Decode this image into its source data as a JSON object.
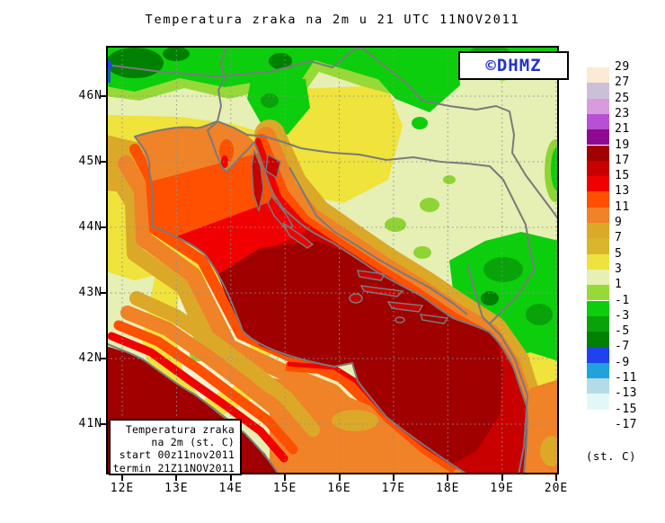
{
  "title": "Temperatura zraka na 2m u 21 UTC 11NOV2011",
  "logo": {
    "text": "©DHMZ",
    "color": "#2233cc"
  },
  "info_box": {
    "lines": [
      "Temperatura zraka",
      "na 2m (st. C)",
      "start 00z11nov2011",
      "termin 21Z11NOV2011"
    ]
  },
  "axes": {
    "x_tick_labels": [
      "12E",
      "13E",
      "14E",
      "15E",
      "16E",
      "17E",
      "18E",
      "19E",
      "20E"
    ],
    "y_tick_labels": [
      "46N",
      "45N",
      "44N",
      "43N",
      "42N",
      "41N"
    ]
  },
  "colorbar": {
    "unit_label": "(st. C)",
    "boundary_labels": [
      "29",
      "27",
      "25",
      "23",
      "21",
      "19",
      "17",
      "15",
      "13",
      "11",
      "9",
      "7",
      "5",
      "3",
      "1",
      "-1",
      "-3",
      "-5",
      "-7",
      "-9",
      "-11",
      "-13",
      "-15",
      "-17"
    ],
    "cells": [
      {
        "range": "27..29",
        "color": "#FCEAD5"
      },
      {
        "range": "25..27",
        "color": "#CBBFD9"
      },
      {
        "range": "23..25",
        "color": "#D89BDE"
      },
      {
        "range": "21..23",
        "color": "#B750D2"
      },
      {
        "range": "19..21",
        "color": "#8E0890"
      },
      {
        "range": "17..19",
        "color": "#A00000"
      },
      {
        "range": "15..17",
        "color": "#C80000"
      },
      {
        "range": "13..15",
        "color": "#F00000"
      },
      {
        "range": "11..13",
        "color": "#FF4F00"
      },
      {
        "range": "9..11",
        "color": "#F08228"
      },
      {
        "range": "7..9",
        "color": "#DCA828"
      },
      {
        "range": "5..7",
        "color": "#D9B62C"
      },
      {
        "range": "3..5",
        "color": "#EDE23F"
      },
      {
        "range": "1..3",
        "color": "#E6EFB4"
      },
      {
        "range": "-1..1",
        "color": "#97D938"
      },
      {
        "range": "-3..-1",
        "color": "#0CCE0C"
      },
      {
        "range": "-5..-3",
        "color": "#09A309"
      },
      {
        "range": "-7..-5",
        "color": "#008000"
      },
      {
        "range": "-9..-7",
        "color": "#1F41F0"
      },
      {
        "range": "-11..-9",
        "color": "#22A2DC"
      },
      {
        "range": "-13..-11",
        "color": "#B3DCE8"
      },
      {
        "range": "-15..-13",
        "color": "#E4F7F7"
      },
      {
        "range": "-17..-15",
        "color": "#FFFFFF"
      }
    ]
  }
}
